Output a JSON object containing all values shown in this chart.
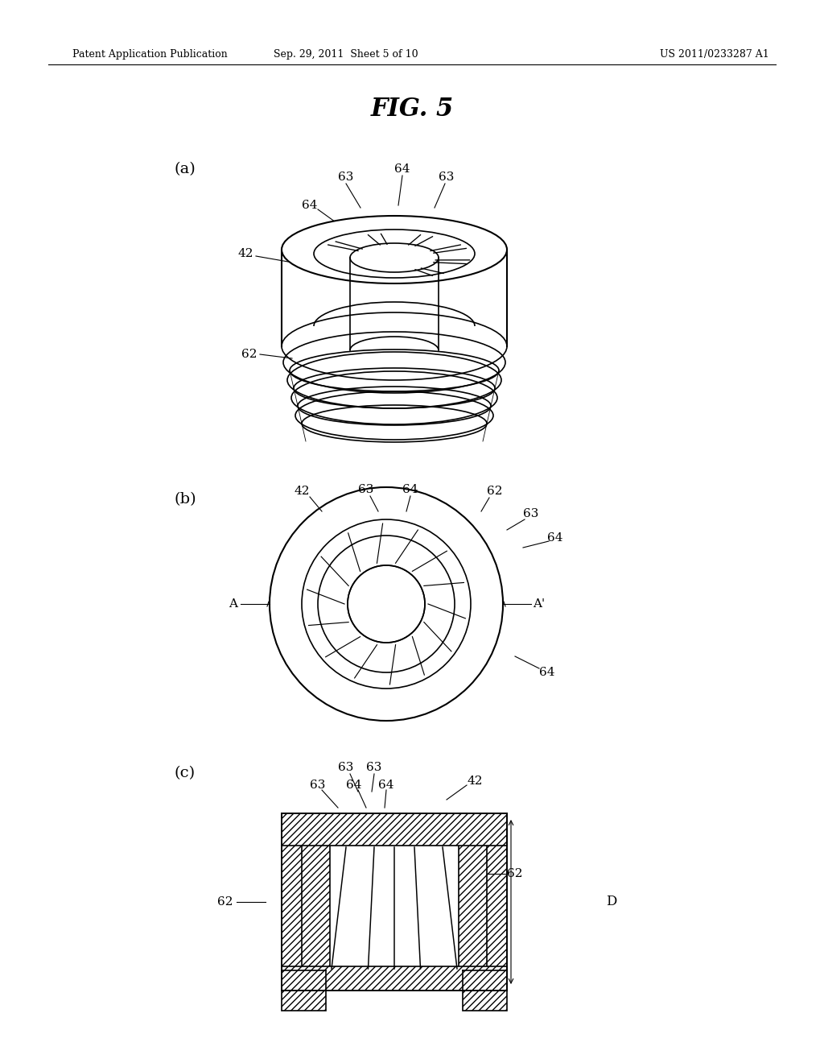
{
  "header_left": "Patent Application Publication",
  "header_mid": "Sep. 29, 2011  Sheet 5 of 10",
  "header_right": "US 2011/0233287 A1",
  "fig_title": "FIG. 5",
  "bg_color": "#ffffff",
  "line_color": "#000000",
  "label_a": "(a)",
  "label_b": "(b)",
  "label_c": "(c)",
  "labels_a": {
    "63_left": "63",
    "64_left": "64",
    "64_top": "64",
    "63_right": "63",
    "42": "42",
    "62": "62"
  },
  "labels_b": {
    "42": "42",
    "63_top": "63",
    "64_top": "64",
    "62_top": "62",
    "63_right": "63",
    "64_right": "64",
    "A": "A",
    "Aprime": "A'",
    "64_bot": "64"
  },
  "labels_c": {
    "63_1": "63",
    "64_1": "64",
    "64_2": "64",
    "63_2": "63",
    "63_3": "63",
    "42": "42",
    "62_left": "62",
    "62_right": "62",
    "D": "D"
  }
}
